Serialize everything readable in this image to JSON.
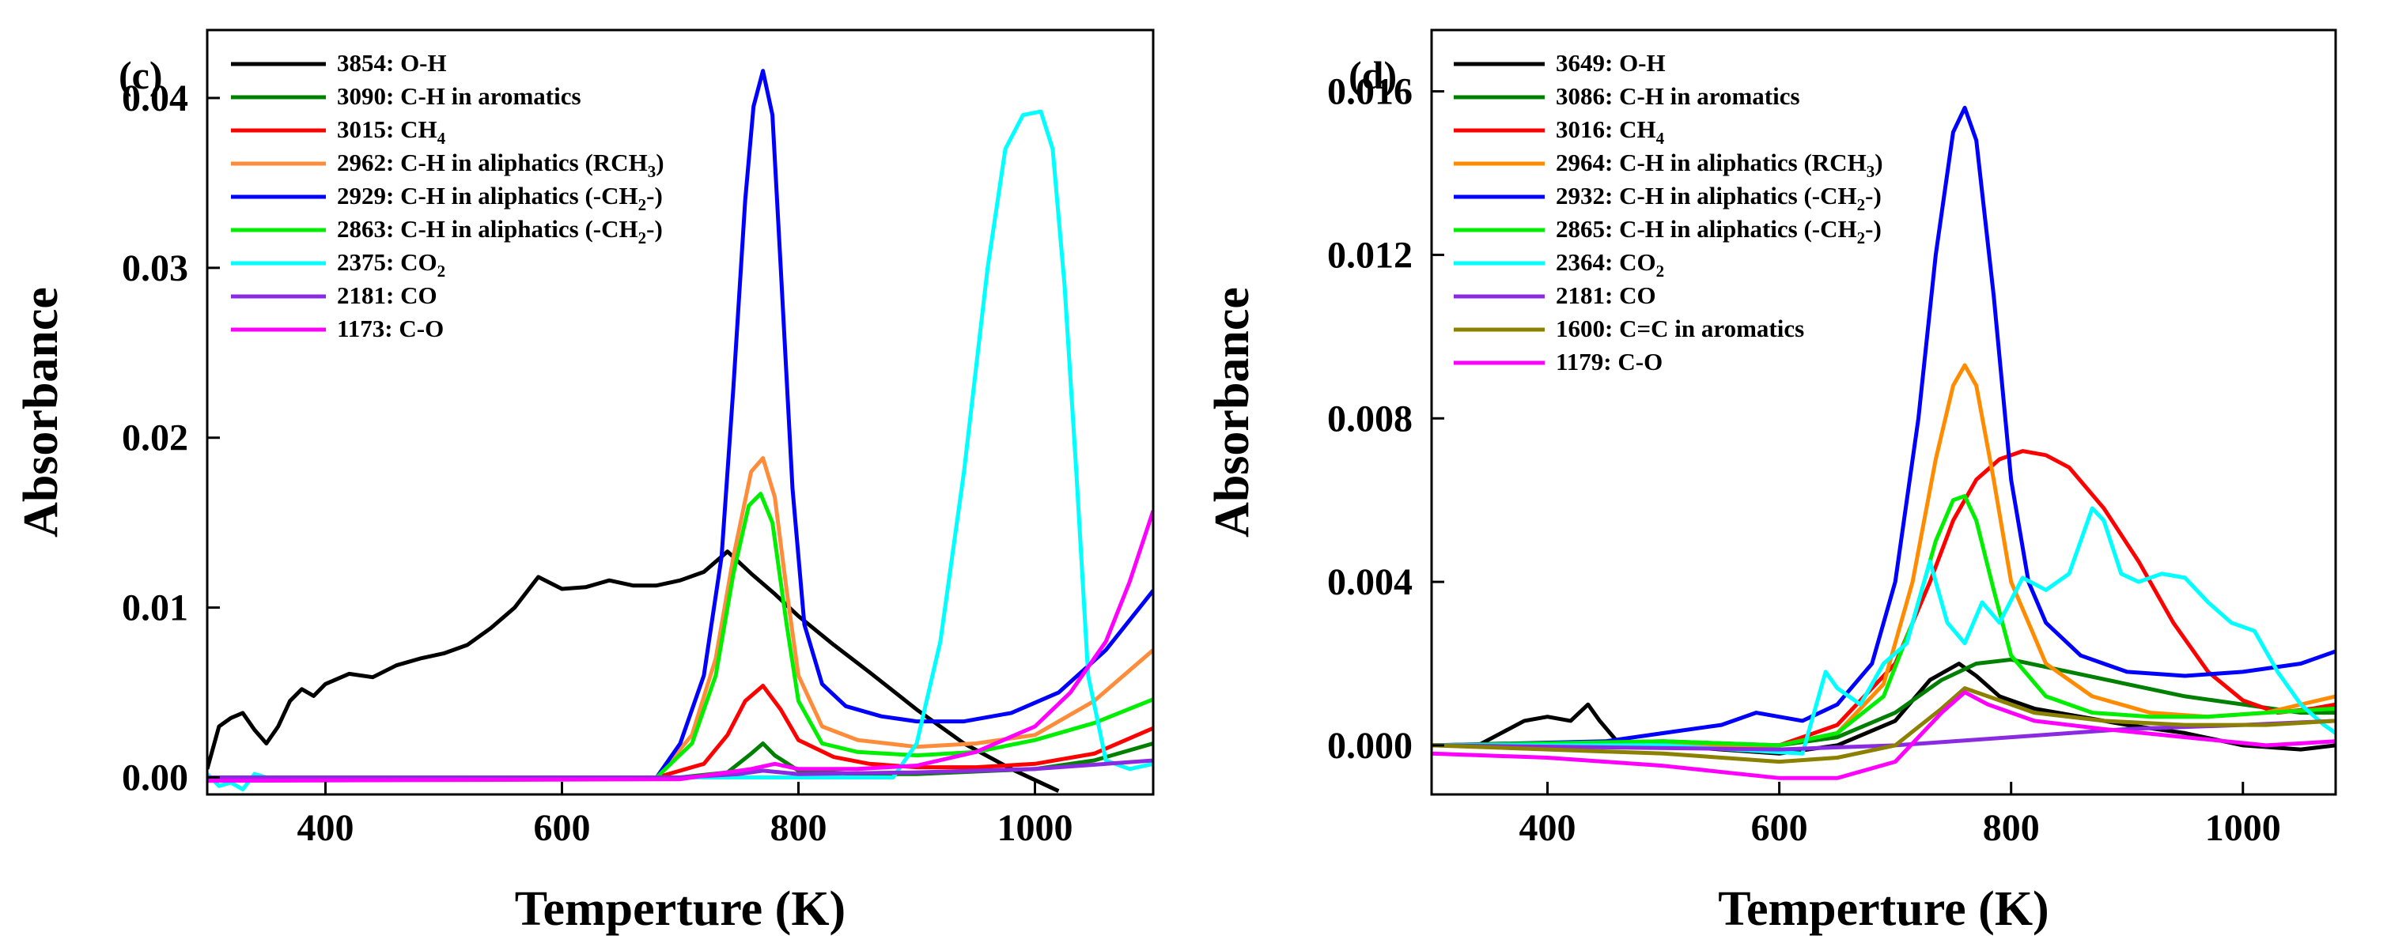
{
  "chart_data": [
    {
      "type": "line",
      "panel_label": "(c)",
      "xlabel": "Temperture (K)",
      "ylabel": "Absorbance",
      "xlim": [
        300,
        1100
      ],
      "ylim": [
        -0.001,
        0.044
      ],
      "xticks": [
        400,
        600,
        800,
        1000
      ],
      "xtick_labels": [
        "400",
        "600",
        "800",
        "1000"
      ],
      "yticks": [
        0.0,
        0.01,
        0.02,
        0.03,
        0.04
      ],
      "ytick_labels": [
        "0.00",
        "0.01",
        "0.02",
        "0.03",
        "0.04"
      ],
      "legend_position": "top-left",
      "series": [
        {
          "legend_main": "3854: O-H",
          "legend_sub": "",
          "legend_tail": "",
          "color": "#000000",
          "x": [
            300,
            310,
            320,
            330,
            340,
            350,
            360,
            370,
            380,
            390,
            400,
            420,
            440,
            460,
            480,
            500,
            520,
            540,
            560,
            580,
            600,
            620,
            640,
            660,
            680,
            700,
            720,
            740,
            760,
            780,
            800,
            830,
            860,
            900,
            940,
            980,
            1020
          ],
          "y": [
            0.0005,
            0.003,
            0.0035,
            0.0038,
            0.0028,
            0.002,
            0.003,
            0.0045,
            0.0052,
            0.0048,
            0.0055,
            0.0061,
            0.0059,
            0.0066,
            0.007,
            0.0073,
            0.0078,
            0.0088,
            0.01,
            0.0118,
            0.0111,
            0.0112,
            0.0116,
            0.0113,
            0.0113,
            0.0116,
            0.0121,
            0.0133,
            0.012,
            0.0108,
            0.0095,
            0.0078,
            0.0062,
            0.004,
            0.002,
            0.0005,
            -0.0008
          ]
        },
        {
          "legend_main": "3090: C-H in aromatics",
          "legend_sub": "",
          "legend_tail": "",
          "color": "#008000",
          "x": [
            300,
            700,
            740,
            760,
            770,
            780,
            800,
            850,
            900,
            1000,
            1050,
            1100
          ],
          "y": [
            0,
            0,
            0.0003,
            0.0014,
            0.002,
            0.0013,
            0.0004,
            0.0002,
            0.0002,
            0.0005,
            0.001,
            0.002
          ]
        },
        {
          "legend_main": "3015: CH",
          "legend_sub": "4",
          "legend_tail": "",
          "color": "#ff0000",
          "x": [
            300,
            680,
            720,
            740,
            755,
            770,
            785,
            800,
            830,
            860,
            900,
            950,
            1000,
            1050,
            1100
          ],
          "y": [
            0,
            0,
            0.0008,
            0.0025,
            0.0045,
            0.0054,
            0.004,
            0.0022,
            0.0012,
            0.0008,
            0.0006,
            0.0006,
            0.0008,
            0.0014,
            0.0029
          ]
        },
        {
          "legend_main": "2962: C-H in aliphatics (RCH",
          "legend_sub": "3",
          "legend_tail": ")",
          "color": "#ff8c3a",
          "x": [
            300,
            680,
            710,
            730,
            745,
            760,
            770,
            780,
            790,
            800,
            820,
            850,
            900,
            950,
            1000,
            1050,
            1100
          ],
          "y": [
            0,
            0,
            0.0025,
            0.007,
            0.013,
            0.018,
            0.0188,
            0.0165,
            0.011,
            0.006,
            0.003,
            0.0022,
            0.0018,
            0.002,
            0.0025,
            0.0045,
            0.0075
          ]
        },
        {
          "legend_main": "2929: C-H in aliphatics (-CH",
          "legend_sub": "2",
          "legend_tail": "-)",
          "color": "#0000ff",
          "x": [
            300,
            680,
            700,
            720,
            735,
            745,
            755,
            762,
            770,
            778,
            785,
            795,
            805,
            820,
            840,
            870,
            900,
            940,
            980,
            1020,
            1060,
            1100
          ],
          "y": [
            0,
            0,
            0.002,
            0.006,
            0.013,
            0.023,
            0.034,
            0.0395,
            0.0416,
            0.039,
            0.03,
            0.017,
            0.009,
            0.0055,
            0.0042,
            0.0036,
            0.0033,
            0.0033,
            0.0038,
            0.005,
            0.0075,
            0.011
          ]
        },
        {
          "legend_main": "2863: C-H in aliphatics (-CH",
          "legend_sub": "2",
          "legend_tail": "-)",
          "color": "#00ee00",
          "x": [
            300,
            680,
            710,
            730,
            745,
            758,
            768,
            778,
            790,
            800,
            820,
            850,
            900,
            950,
            1000,
            1050,
            1100
          ],
          "y": [
            0,
            0,
            0.002,
            0.006,
            0.012,
            0.016,
            0.0167,
            0.015,
            0.009,
            0.0045,
            0.002,
            0.0015,
            0.0013,
            0.0015,
            0.0022,
            0.0032,
            0.0046
          ]
        },
        {
          "legend_main": "2375: CO",
          "legend_sub": "2",
          "legend_tail": "",
          "color": "#00ffff",
          "x": [
            300,
            310,
            320,
            330,
            340,
            350,
            700,
            880,
            900,
            920,
            940,
            960,
            975,
            990,
            1005,
            1015,
            1025,
            1035,
            1045,
            1060,
            1080,
            1100
          ],
          "y": [
            0.0002,
            -0.0005,
            -0.0003,
            -0.0007,
            0.0002,
            0,
            0,
            0,
            0.002,
            0.008,
            0.018,
            0.03,
            0.037,
            0.039,
            0.0392,
            0.037,
            0.029,
            0.018,
            0.006,
            0.001,
            0.0005,
            0.0008
          ]
        },
        {
          "legend_main": "2181: CO",
          "legend_sub": "",
          "legend_tail": "",
          "color": "#8a2be2",
          "x": [
            300,
            700,
            750,
            770,
            800,
            900,
            1000,
            1100
          ],
          "y": [
            0,
            0,
            0.0002,
            0.0004,
            0.0002,
            0.0003,
            0.0005,
            0.001
          ]
        },
        {
          "legend_main": "1173: C-O",
          "legend_sub": "",
          "legend_tail": "",
          "color": "#ff00ff",
          "x": [
            300,
            700,
            760,
            780,
            800,
            850,
            900,
            950,
            1000,
            1030,
            1060,
            1080,
            1100
          ],
          "y": [
            -0.0002,
            -0.0001,
            0.0005,
            0.0008,
            0.0005,
            0.0005,
            0.0007,
            0.0015,
            0.003,
            0.005,
            0.008,
            0.0115,
            0.0157
          ]
        }
      ]
    },
    {
      "type": "line",
      "panel_label": "(d)",
      "xlabel": "Temperture (K)",
      "ylabel": "Absorbance",
      "xlim": [
        300,
        1080
      ],
      "ylim": [
        -0.0012,
        0.0175
      ],
      "xticks": [
        400,
        600,
        800,
        1000
      ],
      "xtick_labels": [
        "400",
        "600",
        "800",
        "1000"
      ],
      "yticks": [
        0.0,
        0.004,
        0.008,
        0.012,
        0.016
      ],
      "ytick_labels": [
        "0.000",
        "0.004",
        "0.008",
        "0.012",
        "0.016"
      ],
      "legend_position": "top-left",
      "series": [
        {
          "legend_main": "3649: O-H",
          "legend_sub": "",
          "legend_tail": "",
          "color": "#000000",
          "x": [
            300,
            340,
            360,
            380,
            400,
            420,
            435,
            445,
            460,
            500,
            550,
            600,
            650,
            700,
            730,
            755,
            770,
            790,
            820,
            860,
            900,
            950,
            1000,
            1050,
            1080
          ],
          "y": [
            0,
            0,
            0.0003,
            0.0006,
            0.0007,
            0.0006,
            0.001,
            0.0006,
            0.0001,
            0,
            -0.0001,
            -0.0002,
            0,
            0.0006,
            0.0016,
            0.002,
            0.0017,
            0.0012,
            0.0009,
            0.0007,
            0.0005,
            0.0003,
            0,
            -0.0001,
            0
          ]
        },
        {
          "legend_main": "3086: C-H in aromatics",
          "legend_sub": "",
          "legend_tail": "",
          "color": "#008000",
          "x": [
            300,
            500,
            600,
            650,
            700,
            740,
            770,
            800,
            850,
            900,
            950,
            1000,
            1050,
            1080
          ],
          "y": [
            0,
            0.0001,
            0,
            0.0002,
            0.0008,
            0.0016,
            0.002,
            0.0021,
            0.0018,
            0.0015,
            0.0012,
            0.001,
            0.0008,
            0.0008
          ]
        },
        {
          "legend_main": "3016: CH",
          "legend_sub": "4",
          "legend_tail": "",
          "color": "#ff0000",
          "x": [
            300,
            600,
            650,
            700,
            730,
            750,
            770,
            790,
            810,
            830,
            850,
            880,
            910,
            940,
            970,
            1000,
            1030,
            1060,
            1080
          ],
          "y": [
            0,
            0,
            0.0005,
            0.002,
            0.004,
            0.0055,
            0.0065,
            0.007,
            0.0072,
            0.0071,
            0.0068,
            0.0058,
            0.0045,
            0.003,
            0.0018,
            0.0011,
            0.0008,
            0.0009,
            0.001
          ]
        },
        {
          "legend_main": "2964: C-H in aliphatics (RCH",
          "legend_sub": "3",
          "legend_tail": ")",
          "color": "#ff8c00",
          "x": [
            300,
            600,
            650,
            690,
            715,
            735,
            750,
            760,
            770,
            785,
            800,
            830,
            870,
            920,
            970,
            1020,
            1080
          ],
          "y": [
            0,
            0,
            0.0003,
            0.0015,
            0.004,
            0.007,
            0.0088,
            0.0093,
            0.0088,
            0.0065,
            0.004,
            0.002,
            0.0012,
            0.0008,
            0.0007,
            0.0008,
            0.0012
          ]
        },
        {
          "legend_main": "2932: C-H in aliphatics (-CH",
          "legend_sub": "2",
          "legend_tail": "-)",
          "color": "#0000ff",
          "x": [
            300,
            450,
            500,
            550,
            580,
            620,
            650,
            680,
            700,
            720,
            735,
            750,
            760,
            770,
            785,
            800,
            815,
            830,
            860,
            900,
            950,
            1000,
            1050,
            1080
          ],
          "y": [
            0,
            0.0001,
            0.0003,
            0.0005,
            0.0008,
            0.0006,
            0.001,
            0.002,
            0.004,
            0.008,
            0.012,
            0.015,
            0.0156,
            0.0148,
            0.011,
            0.0065,
            0.004,
            0.003,
            0.0022,
            0.0018,
            0.0017,
            0.0018,
            0.002,
            0.0023
          ]
        },
        {
          "legend_main": "2865: C-H in aliphatics (-CH",
          "legend_sub": "2",
          "legend_tail": "-)",
          "color": "#00ee00",
          "x": [
            300,
            500,
            600,
            650,
            690,
            715,
            735,
            750,
            760,
            770,
            785,
            800,
            830,
            870,
            920,
            970,
            1020,
            1080
          ],
          "y": [
            0,
            0.0001,
            0,
            0.0003,
            0.0012,
            0.003,
            0.005,
            0.006,
            0.0061,
            0.0055,
            0.0038,
            0.0022,
            0.0012,
            0.0008,
            0.0007,
            0.0007,
            0.0008,
            0.0009
          ]
        },
        {
          "legend_main": "2364: CO",
          "legend_sub": "2",
          "legend_tail": "",
          "color": "#00ffff",
          "x": [
            300,
            500,
            620,
            640,
            650,
            670,
            690,
            710,
            730,
            745,
            760,
            775,
            790,
            810,
            830,
            850,
            870,
            880,
            895,
            910,
            930,
            950,
            970,
            990,
            1010,
            1030,
            1050,
            1070,
            1080
          ],
          "y": [
            0,
            0,
            -0.0002,
            0.0018,
            0.0014,
            0.001,
            0.002,
            0.0025,
            0.0045,
            0.003,
            0.0025,
            0.0035,
            0.003,
            0.0041,
            0.0038,
            0.0042,
            0.0058,
            0.0055,
            0.0042,
            0.004,
            0.0042,
            0.0041,
            0.0035,
            0.003,
            0.0028,
            0.0018,
            0.001,
            0.0005,
            0.0003
          ]
        },
        {
          "legend_main": "2181: CO",
          "legend_sub": "",
          "legend_tail": "",
          "color": "#8a2be2",
          "x": [
            300,
            600,
            700,
            800,
            900,
            1000,
            1080
          ],
          "y": [
            0,
            -0.0001,
            0,
            0.0002,
            0.0004,
            0.0005,
            0.0006
          ]
        },
        {
          "legend_main": "1600: C=C in aromatics",
          "legend_sub": "",
          "legend_tail": "",
          "color": "#8b8000",
          "x": [
            300,
            500,
            600,
            650,
            700,
            740,
            760,
            780,
            820,
            880,
            950,
            1020,
            1080
          ],
          "y": [
            0,
            -0.0002,
            -0.0004,
            -0.0003,
            0,
            0.0009,
            0.0014,
            0.0012,
            0.0008,
            0.0006,
            0.0005,
            0.0005,
            0.0006
          ]
        },
        {
          "legend_main": "1179: C-O",
          "legend_sub": "",
          "legend_tail": "",
          "color": "#ff00ff",
          "x": [
            300,
            400,
            500,
            600,
            650,
            700,
            740,
            760,
            780,
            820,
            880,
            950,
            1020,
            1080
          ],
          "y": [
            -0.0002,
            -0.0003,
            -0.0005,
            -0.0008,
            -0.0008,
            -0.0004,
            0.0008,
            0.0013,
            0.001,
            0.0006,
            0.0004,
            0.0002,
            0,
            0.0001
          ]
        }
      ]
    }
  ]
}
